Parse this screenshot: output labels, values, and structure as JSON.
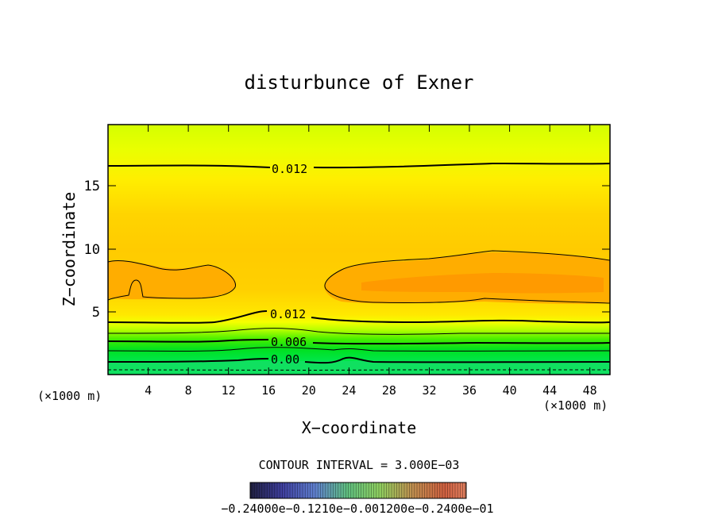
{
  "chart_data": {
    "type": "contour",
    "title": "disturbunce of Exner",
    "xlabel": "X−coordinate",
    "ylabel": "Z−coordinate",
    "x_unit": "(×1000 m)",
    "x_unit_right": "(×1000 m)",
    "x_ticks": [
      "4",
      "8",
      "12",
      "16",
      "20",
      "24",
      "28",
      "32",
      "36",
      "40",
      "44",
      "48"
    ],
    "y_ticks": [
      "5",
      "10",
      "15"
    ],
    "xlim": [
      0,
      50
    ],
    "ylim": [
      0,
      19.8
    ],
    "contour_labels": [
      "0.012",
      "0.012",
      "0.006",
      "0.00"
    ],
    "contour_interval_text": "CONTOUR INTERVAL =  3.000E−03",
    "colorbar_labels_text": "−0.24000e−0.1210e−0.001200e−0.2400e−01",
    "colors": {
      "top": "#d2ff00",
      "upper": "#f5f000",
      "mid": "#ffd800",
      "core": "#ffa000",
      "low_yellow": "#f0ff00",
      "green": "#00ee33",
      "dark_green": "#20d840"
    }
  }
}
